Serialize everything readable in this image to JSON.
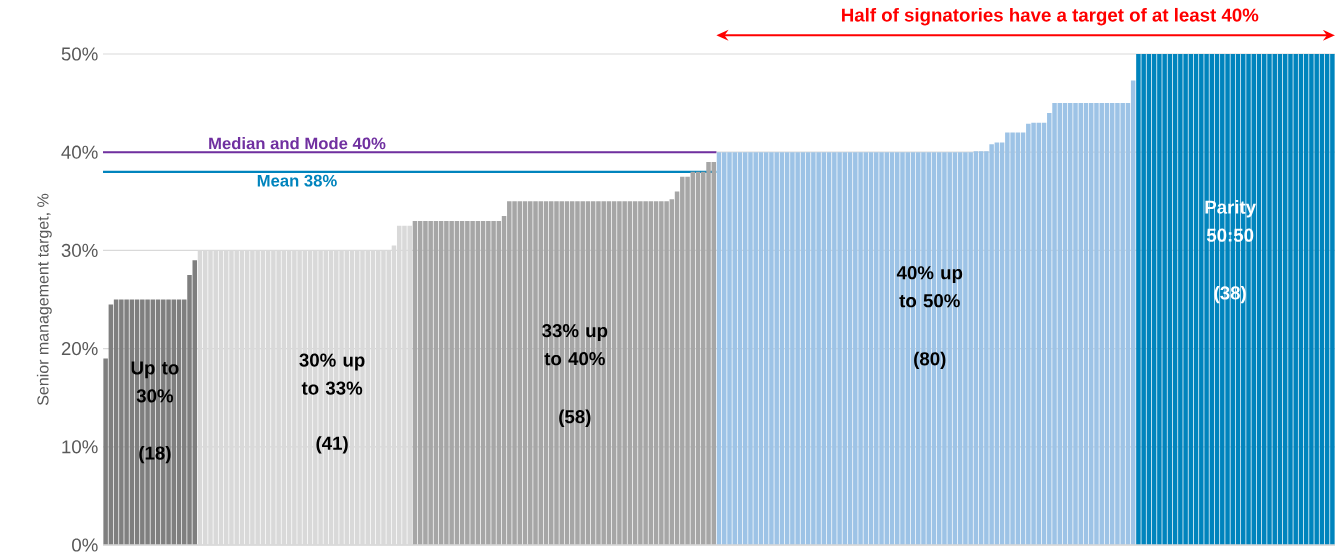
{
  "chart_data": {
    "type": "bar",
    "ylabel": "Senior management target, %",
    "categories": [
      null,
      null,
      null,
      null,
      null,
      null,
      null,
      null,
      null,
      null,
      null,
      null,
      null,
      null,
      null,
      null,
      null,
      null,
      null,
      null,
      null,
      null,
      null,
      null,
      null,
      null,
      null,
      null,
      null,
      null,
      null,
      null,
      null,
      null,
      null,
      null,
      null,
      null,
      null,
      null,
      null,
      null,
      null,
      null,
      null,
      null,
      null,
      null,
      null,
      null,
      null,
      null,
      null,
      null,
      null,
      null,
      null,
      null,
      null,
      null,
      null,
      null,
      null,
      null,
      null,
      null,
      null,
      null,
      null,
      null,
      null,
      null,
      null,
      null,
      null,
      null,
      null,
      null,
      null,
      null,
      null,
      null,
      null,
      null,
      null,
      null,
      null,
      null,
      null,
      null,
      null,
      null,
      null,
      null,
      null,
      null,
      null,
      null,
      null,
      null,
      null,
      null,
      null,
      null,
      null,
      null,
      null,
      null,
      null,
      null,
      null,
      null,
      null,
      null,
      null,
      null,
      null,
      null,
      null,
      null,
      null,
      null,
      null,
      null,
      null,
      null,
      null,
      null,
      null,
      null,
      null,
      null,
      null,
      null,
      null,
      null,
      null,
      null,
      null,
      null,
      null,
      null,
      null,
      null,
      null,
      null,
      null,
      null,
      null,
      null,
      null,
      null,
      null,
      null,
      null,
      null,
      null,
      null,
      null,
      null,
      null,
      null,
      null,
      null,
      null,
      null,
      null,
      null,
      null,
      null,
      null,
      null,
      null,
      null,
      null,
      null,
      null,
      null,
      null,
      null,
      null,
      null,
      null,
      null,
      null,
      null,
      null,
      null,
      null,
      null,
      null,
      null,
      null,
      null,
      null,
      null,
      null,
      null,
      null,
      null,
      null,
      null,
      null,
      null,
      null,
      null,
      null,
      null,
      null,
      null,
      null,
      null,
      null,
      null,
      null,
      null,
      null,
      null,
      null,
      null,
      null,
      null,
      null,
      null,
      null,
      null,
      null,
      null,
      null,
      null,
      null,
      null,
      null,
      null,
      null
    ],
    "values": [
      19,
      24.5,
      25,
      25,
      25,
      25,
      25,
      25,
      25,
      25,
      25,
      25,
      25,
      25,
      25,
      25,
      27.5,
      29,
      30,
      30,
      30,
      30,
      30,
      30,
      30,
      30,
      30,
      30,
      30,
      30,
      30,
      30,
      30,
      30,
      30,
      30,
      30,
      30,
      30,
      30,
      30,
      30,
      30,
      30,
      30,
      30,
      30,
      30,
      30,
      30,
      30,
      30,
      30,
      30,
      30,
      30.5,
      32.5,
      32.5,
      32.5,
      33,
      33,
      33,
      33,
      33,
      33,
      33,
      33,
      33,
      33,
      33,
      33,
      33,
      33,
      33,
      33,
      33,
      33.5,
      35,
      35,
      35,
      35,
      35,
      35,
      35,
      35,
      35,
      35,
      35,
      35,
      35,
      35,
      35,
      35,
      35,
      35,
      35,
      35,
      35,
      35,
      35,
      35,
      35,
      35,
      35,
      35,
      35,
      35,
      35,
      35.2,
      36,
      37.5,
      37.5,
      38,
      38,
      38,
      39,
      39,
      40,
      40,
      40,
      40,
      40,
      40,
      40,
      40,
      40,
      40,
      40,
      40,
      40,
      40,
      40,
      40,
      40,
      40,
      40,
      40,
      40,
      40,
      40,
      40,
      40,
      40,
      40,
      40,
      40,
      40,
      40,
      40,
      40,
      40,
      40,
      40,
      40,
      40,
      40,
      40,
      40,
      40,
      40,
      40,
      40,
      40,
      40,
      40,
      40,
      40.1,
      40.1,
      40.1,
      40.8,
      41,
      41,
      42,
      42,
      42,
      42,
      42.9,
      43,
      43,
      43,
      44,
      45,
      45,
      45,
      45,
      45,
      45,
      45,
      45,
      45,
      45,
      45,
      45,
      45,
      45,
      45,
      47.3,
      50,
      50,
      50,
      50,
      50,
      50,
      50,
      50,
      50,
      50,
      50,
      50,
      50,
      50,
      50,
      50,
      50,
      50,
      50,
      50,
      50,
      50,
      50,
      50,
      50,
      50,
      50,
      50,
      50,
      50,
      50,
      50,
      50,
      50,
      50,
      50,
      50,
      50
    ],
    "colors": [
      "#7f7f7f",
      "#7f7f7f",
      "#7f7f7f",
      "#7f7f7f",
      "#7f7f7f",
      "#7f7f7f",
      "#7f7f7f",
      "#7f7f7f",
      "#7f7f7f",
      "#7f7f7f",
      "#7f7f7f",
      "#7f7f7f",
      "#7f7f7f",
      "#7f7f7f",
      "#7f7f7f",
      "#7f7f7f",
      "#7f7f7f",
      "#7f7f7f",
      "#d9d9d9",
      "#d9d9d9",
      "#d9d9d9",
      "#d9d9d9",
      "#d9d9d9",
      "#d9d9d9",
      "#d9d9d9",
      "#d9d9d9",
      "#d9d9d9",
      "#d9d9d9",
      "#d9d9d9",
      "#d9d9d9",
      "#d9d9d9",
      "#d9d9d9",
      "#d9d9d9",
      "#d9d9d9",
      "#d9d9d9",
      "#d9d9d9",
      "#d9d9d9",
      "#d9d9d9",
      "#d9d9d9",
      "#d9d9d9",
      "#d9d9d9",
      "#d9d9d9",
      "#d9d9d9",
      "#d9d9d9",
      "#d9d9d9",
      "#d9d9d9",
      "#d9d9d9",
      "#d9d9d9",
      "#d9d9d9",
      "#d9d9d9",
      "#d9d9d9",
      "#d9d9d9",
      "#d9d9d9",
      "#d9d9d9",
      "#d9d9d9",
      "#d9d9d9",
      "#d9d9d9",
      "#d9d9d9",
      "#d9d9d9",
      "#a6a6a6",
      "#a6a6a6",
      "#a6a6a6",
      "#a6a6a6",
      "#a6a6a6",
      "#a6a6a6",
      "#a6a6a6",
      "#a6a6a6",
      "#a6a6a6",
      "#a6a6a6",
      "#a6a6a6",
      "#a6a6a6",
      "#a6a6a6",
      "#a6a6a6",
      "#a6a6a6",
      "#a6a6a6",
      "#a6a6a6",
      "#a6a6a6",
      "#a6a6a6",
      "#a6a6a6",
      "#a6a6a6",
      "#a6a6a6",
      "#a6a6a6",
      "#a6a6a6",
      "#a6a6a6",
      "#a6a6a6",
      "#a6a6a6",
      "#a6a6a6",
      "#a6a6a6",
      "#a6a6a6",
      "#a6a6a6",
      "#a6a6a6",
      "#a6a6a6",
      "#a6a6a6",
      "#a6a6a6",
      "#a6a6a6",
      "#a6a6a6",
      "#a6a6a6",
      "#a6a6a6",
      "#a6a6a6",
      "#a6a6a6",
      "#a6a6a6",
      "#a6a6a6",
      "#a6a6a6",
      "#a6a6a6",
      "#a6a6a6",
      "#a6a6a6",
      "#a6a6a6",
      "#a6a6a6",
      "#a6a6a6",
      "#a6a6a6",
      "#a6a6a6",
      "#a6a6a6",
      "#a6a6a6",
      "#a6a6a6",
      "#a6a6a6",
      "#a6a6a6",
      "#a6a6a6",
      "#9dc3e6",
      "#9dc3e6",
      "#9dc3e6",
      "#9dc3e6",
      "#9dc3e6",
      "#9dc3e6",
      "#9dc3e6",
      "#9dc3e6",
      "#9dc3e6",
      "#9dc3e6",
      "#9dc3e6",
      "#9dc3e6",
      "#9dc3e6",
      "#9dc3e6",
      "#9dc3e6",
      "#9dc3e6",
      "#9dc3e6",
      "#9dc3e6",
      "#9dc3e6",
      "#9dc3e6",
      "#9dc3e6",
      "#9dc3e6",
      "#9dc3e6",
      "#9dc3e6",
      "#9dc3e6",
      "#9dc3e6",
      "#9dc3e6",
      "#9dc3e6",
      "#9dc3e6",
      "#9dc3e6",
      "#9dc3e6",
      "#9dc3e6",
      "#9dc3e6",
      "#9dc3e6",
      "#9dc3e6",
      "#9dc3e6",
      "#9dc3e6",
      "#9dc3e6",
      "#9dc3e6",
      "#9dc3e6",
      "#9dc3e6",
      "#9dc3e6",
      "#9dc3e6",
      "#9dc3e6",
      "#9dc3e6",
      "#9dc3e6",
      "#9dc3e6",
      "#9dc3e6",
      "#9dc3e6",
      "#9dc3e6",
      "#9dc3e6",
      "#9dc3e6",
      "#9dc3e6",
      "#9dc3e6",
      "#9dc3e6",
      "#9dc3e6",
      "#9dc3e6",
      "#9dc3e6",
      "#9dc3e6",
      "#9dc3e6",
      "#9dc3e6",
      "#9dc3e6",
      "#9dc3e6",
      "#9dc3e6",
      "#9dc3e6",
      "#9dc3e6",
      "#9dc3e6",
      "#9dc3e6",
      "#9dc3e6",
      "#9dc3e6",
      "#9dc3e6",
      "#9dc3e6",
      "#9dc3e6",
      "#9dc3e6",
      "#9dc3e6",
      "#9dc3e6",
      "#9dc3e6",
      "#9dc3e6",
      "#9dc3e6",
      "#9dc3e6",
      "#0084bd",
      "#0084bd",
      "#0084bd",
      "#0084bd",
      "#0084bd",
      "#0084bd",
      "#0084bd",
      "#0084bd",
      "#0084bd",
      "#0084bd",
      "#0084bd",
      "#0084bd",
      "#0084bd",
      "#0084bd",
      "#0084bd",
      "#0084bd",
      "#0084bd",
      "#0084bd",
      "#0084bd",
      "#0084bd",
      "#0084bd",
      "#0084bd",
      "#0084bd",
      "#0084bd",
      "#0084bd",
      "#0084bd",
      "#0084bd",
      "#0084bd",
      "#0084bd",
      "#0084bd",
      "#0084bd",
      "#0084bd",
      "#0084bd",
      "#0084bd",
      "#0084bd",
      "#0084bd",
      "#0084bd",
      "#0084bd"
    ],
    "ylim": [
      0,
      50
    ],
    "yticks": [
      {
        "value": 0,
        "label": "0%"
      },
      {
        "value": 10,
        "label": "10%"
      },
      {
        "value": 20,
        "label": "20%"
      },
      {
        "value": 30,
        "label": "30%"
      },
      {
        "value": 40,
        "label": "40%"
      },
      {
        "value": 50,
        "label": "50%"
      }
    ],
    "grid": "y",
    "ref_lines": [
      {
        "axis": "y",
        "value": 40,
        "label": "Median and Mode 40%",
        "color": "#7030a0"
      },
      {
        "axis": "y",
        "value": 38,
        "label": "Mean 38%",
        "color": "#0084bd"
      }
    ],
    "annotations": [
      "Half of signatories have a target of at least 40%",
      "Up to 30%",
      "(18)",
      "30% up to 33%",
      "(41)",
      "33% up to 40%",
      "(58)",
      "40% up to 50%",
      "(80)",
      "Parity 50:50",
      "(38)"
    ]
  }
}
